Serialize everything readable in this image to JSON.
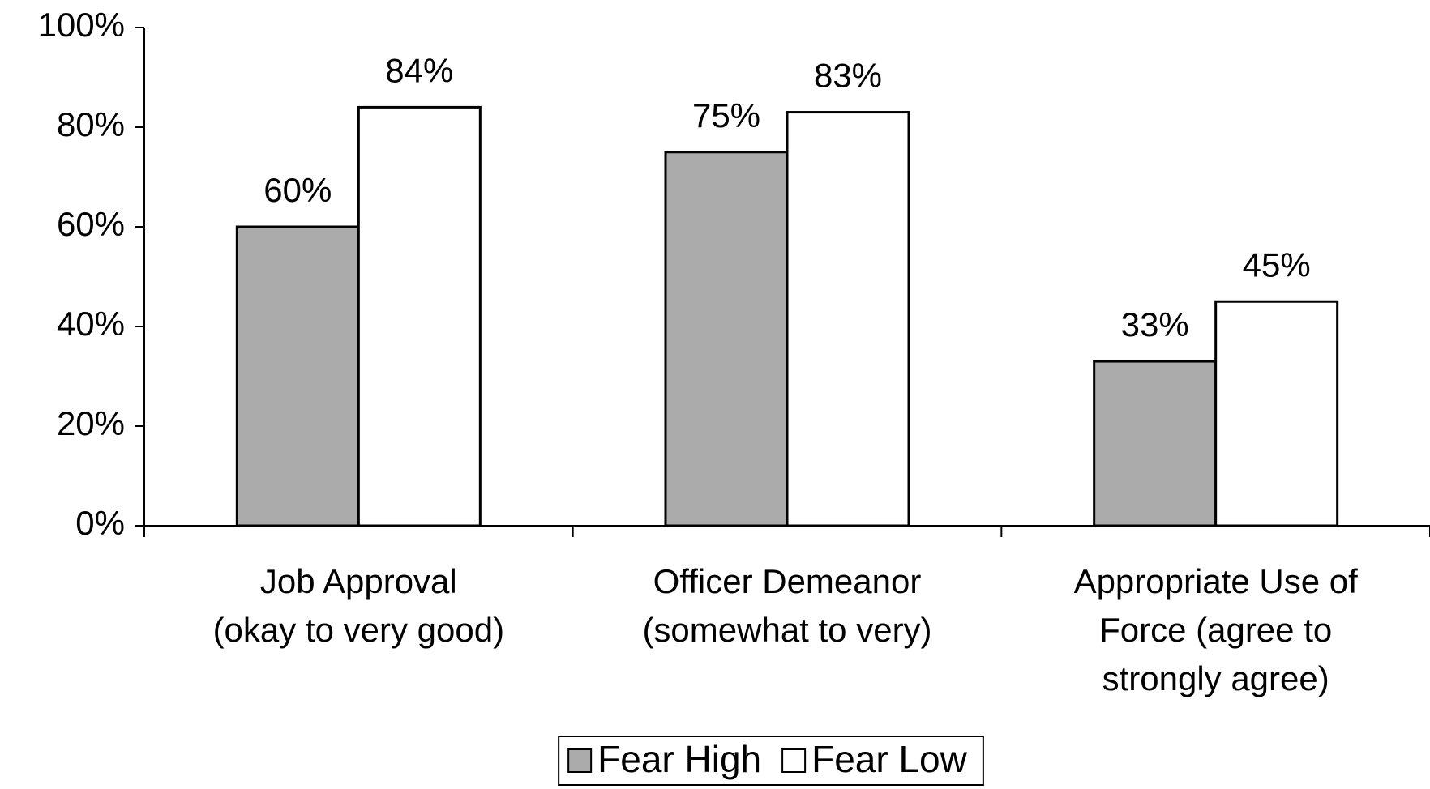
{
  "chart_data": {
    "type": "bar",
    "categories": [
      [
        "Job Approval",
        "(okay to very good)"
      ],
      [
        "Officer Demeanor",
        "(somewhat to very)"
      ],
      [
        "Appropriate Use of",
        "Force (agree to",
        "strongly agree)"
      ]
    ],
    "series": [
      {
        "name": "Fear High",
        "color": "#ababab",
        "values": [
          60,
          75,
          33
        ],
        "value_labels": [
          "60%",
          "75%",
          "33%"
        ]
      },
      {
        "name": "Fear Low",
        "color": "#ffffff",
        "values": [
          84,
          83,
          45
        ],
        "value_labels": [
          "84%",
          "83%",
          "45%"
        ]
      }
    ],
    "ylim": [
      0,
      100
    ],
    "yticks": [
      {
        "value": 0,
        "label": "0%"
      },
      {
        "value": 20,
        "label": "20%"
      },
      {
        "value": 40,
        "label": "40%"
      },
      {
        "value": 60,
        "label": "60%"
      },
      {
        "value": 80,
        "label": "80%"
      },
      {
        "value": 100,
        "label": "100%"
      }
    ],
    "legend": "bottom"
  }
}
